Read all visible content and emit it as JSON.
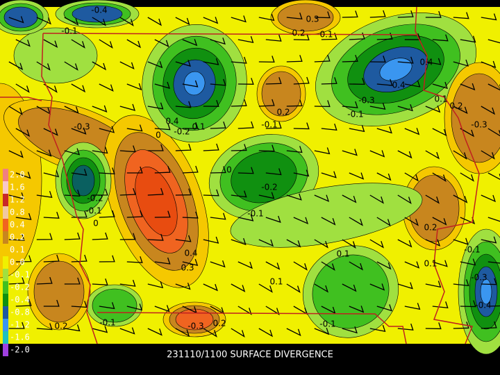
{
  "title": "231110/1100 SURFACE DIVERGENCE",
  "legend": {
    "labels": [
      "2.0",
      "1.6",
      "1.2",
      "0.8",
      "0.4",
      "0.2",
      "0.1",
      "0.0",
      "-0.1",
      "-0.2",
      "-0.4",
      "-0.8",
      "-1.2",
      "-1.6",
      "-2.0"
    ],
    "colors": [
      "#f08080",
      "#f8c8c8",
      "#c82828",
      "#f0c8a0",
      "#f06420",
      "#c8861e",
      "#f5c800",
      "#f0f000",
      "#a0e040",
      "#40c020",
      "#109010",
      "#1e5aa0",
      "#3a96f0",
      "#20c0c0",
      "#a040e0"
    ]
  },
  "contour_labels": [
    "-0.1",
    "-0.4",
    "0.3",
    "0.2",
    "0.1",
    "0.4",
    "-0.4",
    "-0.3",
    "-0.1",
    "0.1",
    "0.2",
    "-0.3",
    "-0.3",
    "0.2",
    "-0.1",
    "0.4",
    "-0.2",
    "0.1",
    "0",
    "0",
    "-0.2",
    "-0.2",
    "-0.1",
    "0",
    "-0.1",
    "0.2",
    "-0.1",
    "0.4",
    "0.3",
    "0.1",
    "0.1",
    "0.1",
    "-0.3",
    "-0.4",
    "0.2",
    "-0.1",
    "-0.3",
    "0.2",
    "-0.1"
  ]
}
